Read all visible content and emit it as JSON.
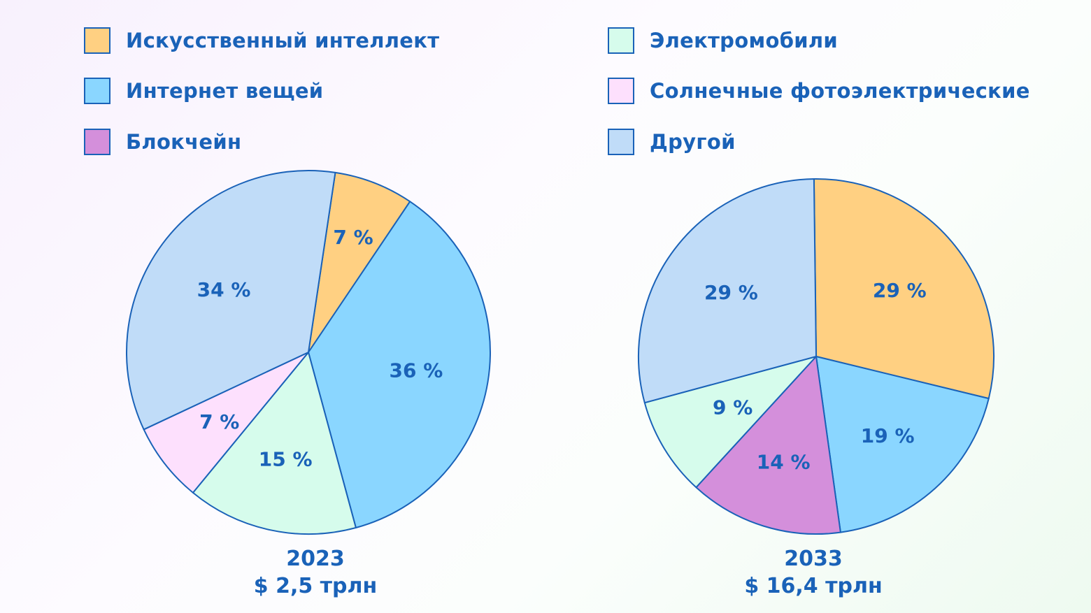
{
  "legend": [
    {
      "label": "Искусственный интеллект",
      "color": "#ffd082"
    },
    {
      "label": "Интернет вещей",
      "color": "#8ad6ff"
    },
    {
      "label": "Блокчейн",
      "color": "#d48fdb"
    },
    {
      "label": "Электромобили",
      "color": "#d6fcec"
    },
    {
      "label": "Солнечные фотоэлектрические",
      "color": "#fde0fd"
    },
    {
      "label": "Другой",
      "color": "#c0dcf8"
    }
  ],
  "stroke_color": "#1a62b8",
  "text_color": "#1a62b8",
  "chart_data": [
    {
      "type": "pie",
      "year": "2023",
      "total": "$ 2,5 трлн",
      "slices": [
        {
          "name": "Искусственный интеллект",
          "value": 7,
          "label": "7 %"
        },
        {
          "name": "Интернет вещей",
          "value": 36,
          "label": "36 %"
        },
        {
          "name": "Электромобили",
          "value": 15,
          "label": "15 %"
        },
        {
          "name": "Солнечные фотоэлектрические",
          "value": 7,
          "label": "7 %"
        },
        {
          "name": "Другой",
          "value": 34,
          "label": "34 %"
        }
      ]
    },
    {
      "type": "pie",
      "year": "2033",
      "total": "$ 16,4 трлн",
      "slices": [
        {
          "name": "Искусственный интеллект",
          "value": 29,
          "label": "29 %"
        },
        {
          "name": "Интернет вещей",
          "value": 19,
          "label": "19 %"
        },
        {
          "name": "Блокчейн",
          "value": 14,
          "label": "14 %"
        },
        {
          "name": "Электромобили",
          "value": 9,
          "label": "9 %"
        },
        {
          "name": "Другой",
          "value": 29,
          "label": "29 %"
        }
      ]
    }
  ]
}
